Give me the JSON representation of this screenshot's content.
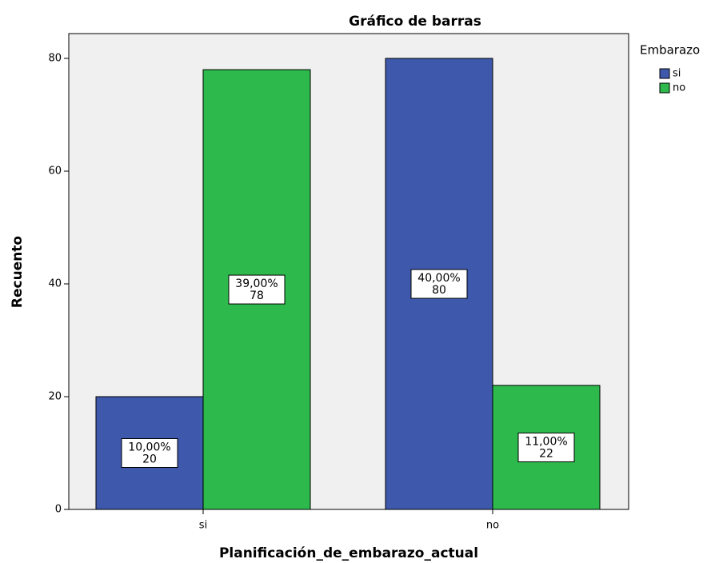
{
  "chart_data": {
    "type": "bar",
    "title": "Gráfico de barras",
    "x_label": "Planificación_de_embarazo_actual",
    "y_label": "Recuento",
    "legend_title": "Embarazo",
    "legend_position": "right",
    "categories": [
      "si",
      "no"
    ],
    "series": [
      {
        "name": "si",
        "color": "#3e58ac",
        "values": [
          20,
          80
        ],
        "percent_labels": [
          "10,00%",
          "40,00%"
        ]
      },
      {
        "name": "no",
        "color": "#2db94b",
        "values": [
          78,
          22
        ],
        "percent_labels": [
          "39,00%",
          "11,00%"
        ]
      }
    ],
    "ylim": [
      0,
      84.4
    ],
    "yticks": [
      0,
      20,
      40,
      60,
      80
    ],
    "grid": false
  }
}
